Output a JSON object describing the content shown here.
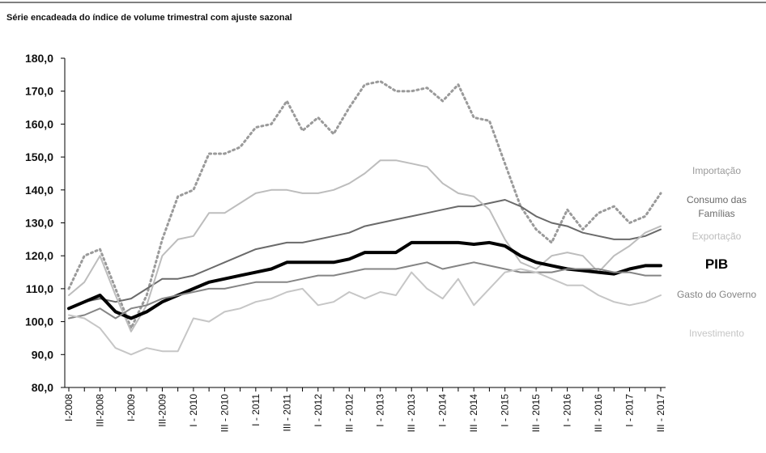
{
  "chart_data": {
    "type": "line",
    "title": "Série encadeada do índice de volume trimestral com ajuste sazonal",
    "categories": [
      "I-2008",
      null,
      "III-2008",
      null,
      "I-2009",
      null,
      "III-2009",
      null,
      "I - 2010",
      null,
      "III - 2010",
      null,
      "I - 2011",
      null,
      "III - 2011",
      null,
      "I - 2012",
      null,
      "III - 2012",
      null,
      "I - 2013",
      null,
      "III - 2013",
      null,
      "I - 2014",
      null,
      "III - 2014",
      null,
      "I - 2015",
      null,
      "III - 2015",
      null,
      "I - 2016",
      null,
      "III - 2016",
      null,
      "I - 2017",
      null,
      "III - 2017"
    ],
    "ylim": [
      80,
      180
    ],
    "yticks": [
      {
        "value": 80,
        "label": "80,0"
      },
      {
        "value": 90,
        "label": "90,0"
      },
      {
        "value": 100,
        "label": "100,0"
      },
      {
        "value": 110,
        "label": "110,0"
      },
      {
        "value": 120,
        "label": "120,0"
      },
      {
        "value": 130,
        "label": "130,0"
      },
      {
        "value": 140,
        "label": "140,0"
      },
      {
        "value": 150,
        "label": "150,0"
      },
      {
        "value": 160,
        "label": "160,0"
      },
      {
        "value": 170,
        "label": "170,0"
      },
      {
        "value": 180,
        "label": "180,0"
      }
    ],
    "grid": false,
    "series": [
      {
        "name": "Importação",
        "color": "#9a9a9a",
        "dash": true,
        "values": [
          110,
          120,
          122,
          110,
          98,
          108,
          125,
          138,
          140,
          151,
          151,
          153,
          159,
          160,
          167,
          158,
          162,
          157,
          165,
          172,
          173,
          170,
          170,
          171,
          167,
          172,
          162,
          161,
          148,
          135,
          128,
          124,
          134,
          128,
          133,
          135,
          130,
          132,
          139
        ]
      },
      {
        "name": "Consumo das Famílias",
        "color": "#6a6a6a",
        "values": [
          104,
          106,
          107,
          106,
          107,
          110,
          113,
          113,
          114,
          116,
          118,
          120,
          122,
          123,
          124,
          124,
          125,
          126,
          127,
          129,
          130,
          131,
          132,
          133,
          134,
          135,
          135,
          136,
          137,
          135,
          132,
          130,
          129,
          127,
          126,
          125,
          125,
          126,
          128
        ]
      },
      {
        "name": "Exportação",
        "color": "#bdbdbd",
        "values": [
          108,
          112,
          120,
          108,
          97,
          105,
          120,
          125,
          126,
          133,
          133,
          136,
          139,
          140,
          140,
          139,
          139,
          140,
          142,
          145,
          149,
          149,
          148,
          147,
          142,
          139,
          138,
          134,
          125,
          118,
          116,
          120,
          121,
          120,
          115,
          120,
          123,
          127,
          129
        ]
      },
      {
        "name": "PIB",
        "color": "#000000",
        "bold": true,
        "values": [
          104,
          106,
          108,
          103,
          101,
          103,
          106,
          108,
          110,
          112,
          113,
          114,
          115,
          116,
          118,
          118,
          118,
          118,
          119,
          121,
          121,
          121,
          124,
          124,
          124,
          124,
          123.5,
          124,
          123,
          120,
          118,
          117,
          116,
          115.5,
          115,
          114.5,
          116,
          117,
          117
        ]
      },
      {
        "name": "Gasto do Governo",
        "color": "#858585",
        "values": [
          101,
          102,
          104,
          101,
          104,
          105,
          107,
          108,
          109,
          110,
          110,
          111,
          112,
          112,
          112,
          113,
          114,
          114,
          115,
          116,
          116,
          116,
          117,
          118,
          116,
          117,
          118,
          117,
          116,
          115,
          115,
          115,
          116,
          116,
          116,
          115,
          115,
          114,
          114
        ]
      },
      {
        "name": "Investimento",
        "color": "#c6c6c6",
        "values": [
          102,
          101,
          98,
          92,
          90,
          92,
          91,
          91,
          101,
          100,
          103,
          104,
          106,
          107,
          109,
          110,
          105,
          106,
          109,
          107,
          109,
          108,
          115,
          110,
          107,
          113,
          105,
          110,
          115,
          116,
          115,
          113,
          111,
          111,
          108,
          106,
          105,
          106,
          108
        ]
      }
    ]
  }
}
